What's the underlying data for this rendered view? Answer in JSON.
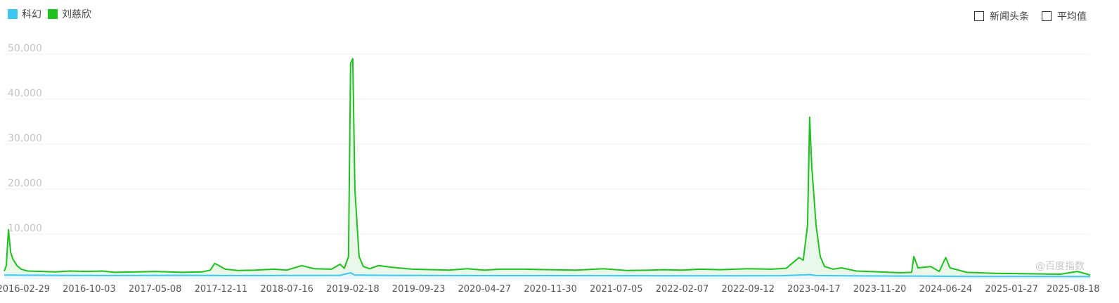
{
  "legend": {
    "items": [
      {
        "label": "科幻",
        "color": "#3fc6f0"
      },
      {
        "label": "刘慈欣",
        "color": "#1fc01f"
      }
    ]
  },
  "toggles": {
    "news": "新闻头条",
    "average": "平均值"
  },
  "watermark": "@百度指数",
  "chart_data": {
    "type": "line",
    "y_ticks": [
      "10,000",
      "20,000",
      "30,000",
      "40,000",
      "50,000"
    ],
    "y_tick_values": [
      10000,
      20000,
      30000,
      40000,
      50000
    ],
    "ylim": [
      0,
      50000
    ],
    "x_tick_labels": [
      "2016-02-29",
      "2016-10-03",
      "2017-05-08",
      "2017-12-11",
      "2018-07-16",
      "2019-02-18",
      "2019-09-23",
      "2020-04-27",
      "2020-11-30",
      "2021-07-05",
      "2022-02-07",
      "2022-09-12",
      "2023-04-17",
      "2023-11-20",
      "2024-06-24",
      "2025-01-27",
      "2025-08-18"
    ],
    "x_range": [
      "2015-12-28",
      "2025-10-13"
    ],
    "grid": true,
    "legend_position": "top-left",
    "series": [
      {
        "name": "刘慈欣",
        "color": "#1fc01f",
        "fill": "#e9f8e9",
        "points": [
          [
            "2015-12-28",
            1800
          ],
          [
            "2016-01-04",
            3000
          ],
          [
            "2016-01-11",
            11000
          ],
          [
            "2016-01-18",
            6000
          ],
          [
            "2016-01-25",
            4500
          ],
          [
            "2016-02-08",
            3000
          ],
          [
            "2016-02-22",
            2200
          ],
          [
            "2016-03-14",
            1800
          ],
          [
            "2016-05-02",
            1700
          ],
          [
            "2016-06-13",
            1600
          ],
          [
            "2016-08-01",
            1800
          ],
          [
            "2016-09-26",
            1700
          ],
          [
            "2016-11-14",
            1800
          ],
          [
            "2016-12-26",
            1500
          ],
          [
            "2017-03-13",
            1600
          ],
          [
            "2017-05-08",
            1700
          ],
          [
            "2017-08-07",
            1500
          ],
          [
            "2017-10-09",
            1600
          ],
          [
            "2017-11-06",
            2000
          ],
          [
            "2017-11-20",
            3500
          ],
          [
            "2017-12-04",
            3000
          ],
          [
            "2017-12-25",
            2200
          ],
          [
            "2018-02-05",
            1900
          ],
          [
            "2018-04-02",
            2000
          ],
          [
            "2018-06-04",
            2200
          ],
          [
            "2018-07-16",
            2000
          ],
          [
            "2018-09-03",
            3000
          ],
          [
            "2018-10-15",
            2300
          ],
          [
            "2018-12-10",
            2200
          ],
          [
            "2019-01-07",
            3300
          ],
          [
            "2019-01-21",
            2400
          ],
          [
            "2019-02-04",
            5000
          ],
          [
            "2019-02-11",
            48000
          ],
          [
            "2019-02-18",
            49000
          ],
          [
            "2019-02-25",
            20000
          ],
          [
            "2019-03-11",
            5000
          ],
          [
            "2019-03-25",
            2800
          ],
          [
            "2019-04-15",
            2300
          ],
          [
            "2019-05-13",
            3000
          ],
          [
            "2019-07-01",
            2600
          ],
          [
            "2019-09-02",
            2200
          ],
          [
            "2019-12-30",
            2000
          ],
          [
            "2020-03-02",
            2300
          ],
          [
            "2020-04-27",
            2000
          ],
          [
            "2020-06-15",
            2200
          ],
          [
            "2020-08-31",
            2200
          ],
          [
            "2020-11-30",
            2100
          ],
          [
            "2021-02-22",
            2000
          ],
          [
            "2021-05-24",
            2300
          ],
          [
            "2021-08-09",
            1900
          ],
          [
            "2021-10-25",
            2000
          ],
          [
            "2021-12-06",
            2100
          ],
          [
            "2022-02-07",
            2000
          ],
          [
            "2022-04-04",
            2200
          ],
          [
            "2022-06-13",
            2100
          ],
          [
            "2022-09-12",
            2300
          ],
          [
            "2022-11-28",
            2200
          ],
          [
            "2023-01-16",
            2400
          ],
          [
            "2023-02-27",
            4800
          ],
          [
            "2023-03-13",
            4200
          ],
          [
            "2023-03-27",
            12000
          ],
          [
            "2023-04-03",
            36000
          ],
          [
            "2023-04-10",
            25000
          ],
          [
            "2023-04-24",
            12000
          ],
          [
            "2023-05-08",
            5000
          ],
          [
            "2023-05-22",
            2800
          ],
          [
            "2023-06-19",
            2200
          ],
          [
            "2023-07-17",
            2500
          ],
          [
            "2023-09-04",
            1800
          ],
          [
            "2023-11-20",
            1600
          ],
          [
            "2024-01-29",
            1400
          ],
          [
            "2024-03-04",
            1500
          ],
          [
            "2024-03-11",
            5000
          ],
          [
            "2024-03-25",
            2500
          ],
          [
            "2024-05-06",
            2800
          ],
          [
            "2024-06-03",
            1700
          ],
          [
            "2024-06-24",
            4800
          ],
          [
            "2024-07-08",
            2500
          ],
          [
            "2024-09-02",
            1500
          ],
          [
            "2024-12-02",
            1300
          ],
          [
            "2025-03-03",
            1200
          ],
          [
            "2025-07-07",
            1100
          ],
          [
            "2025-09-01",
            1700
          ],
          [
            "2025-10-13",
            900
          ]
        ]
      },
      {
        "name": "科幻",
        "color": "#3fc6f0",
        "fill": "#e8f7fd",
        "points": [
          [
            "2015-12-28",
            900
          ],
          [
            "2016-06-27",
            850
          ],
          [
            "2017-01-02",
            800
          ],
          [
            "2017-07-03",
            850
          ],
          [
            "2018-01-01",
            800
          ],
          [
            "2018-07-02",
            820
          ],
          [
            "2019-01-07",
            850
          ],
          [
            "2019-02-11",
            1400
          ],
          [
            "2019-02-25",
            900
          ],
          [
            "2019-07-01",
            850
          ],
          [
            "2020-01-06",
            800
          ],
          [
            "2020-07-06",
            780
          ],
          [
            "2021-01-04",
            780
          ],
          [
            "2021-07-05",
            760
          ],
          [
            "2022-01-03",
            750
          ],
          [
            "2022-07-04",
            740
          ],
          [
            "2023-01-02",
            760
          ],
          [
            "2023-04-03",
            1000
          ],
          [
            "2023-04-24",
            800
          ],
          [
            "2023-10-02",
            700
          ],
          [
            "2024-04-01",
            650
          ],
          [
            "2024-10-07",
            600
          ],
          [
            "2025-04-07",
            580
          ],
          [
            "2025-10-13",
            560
          ]
        ]
      }
    ]
  }
}
